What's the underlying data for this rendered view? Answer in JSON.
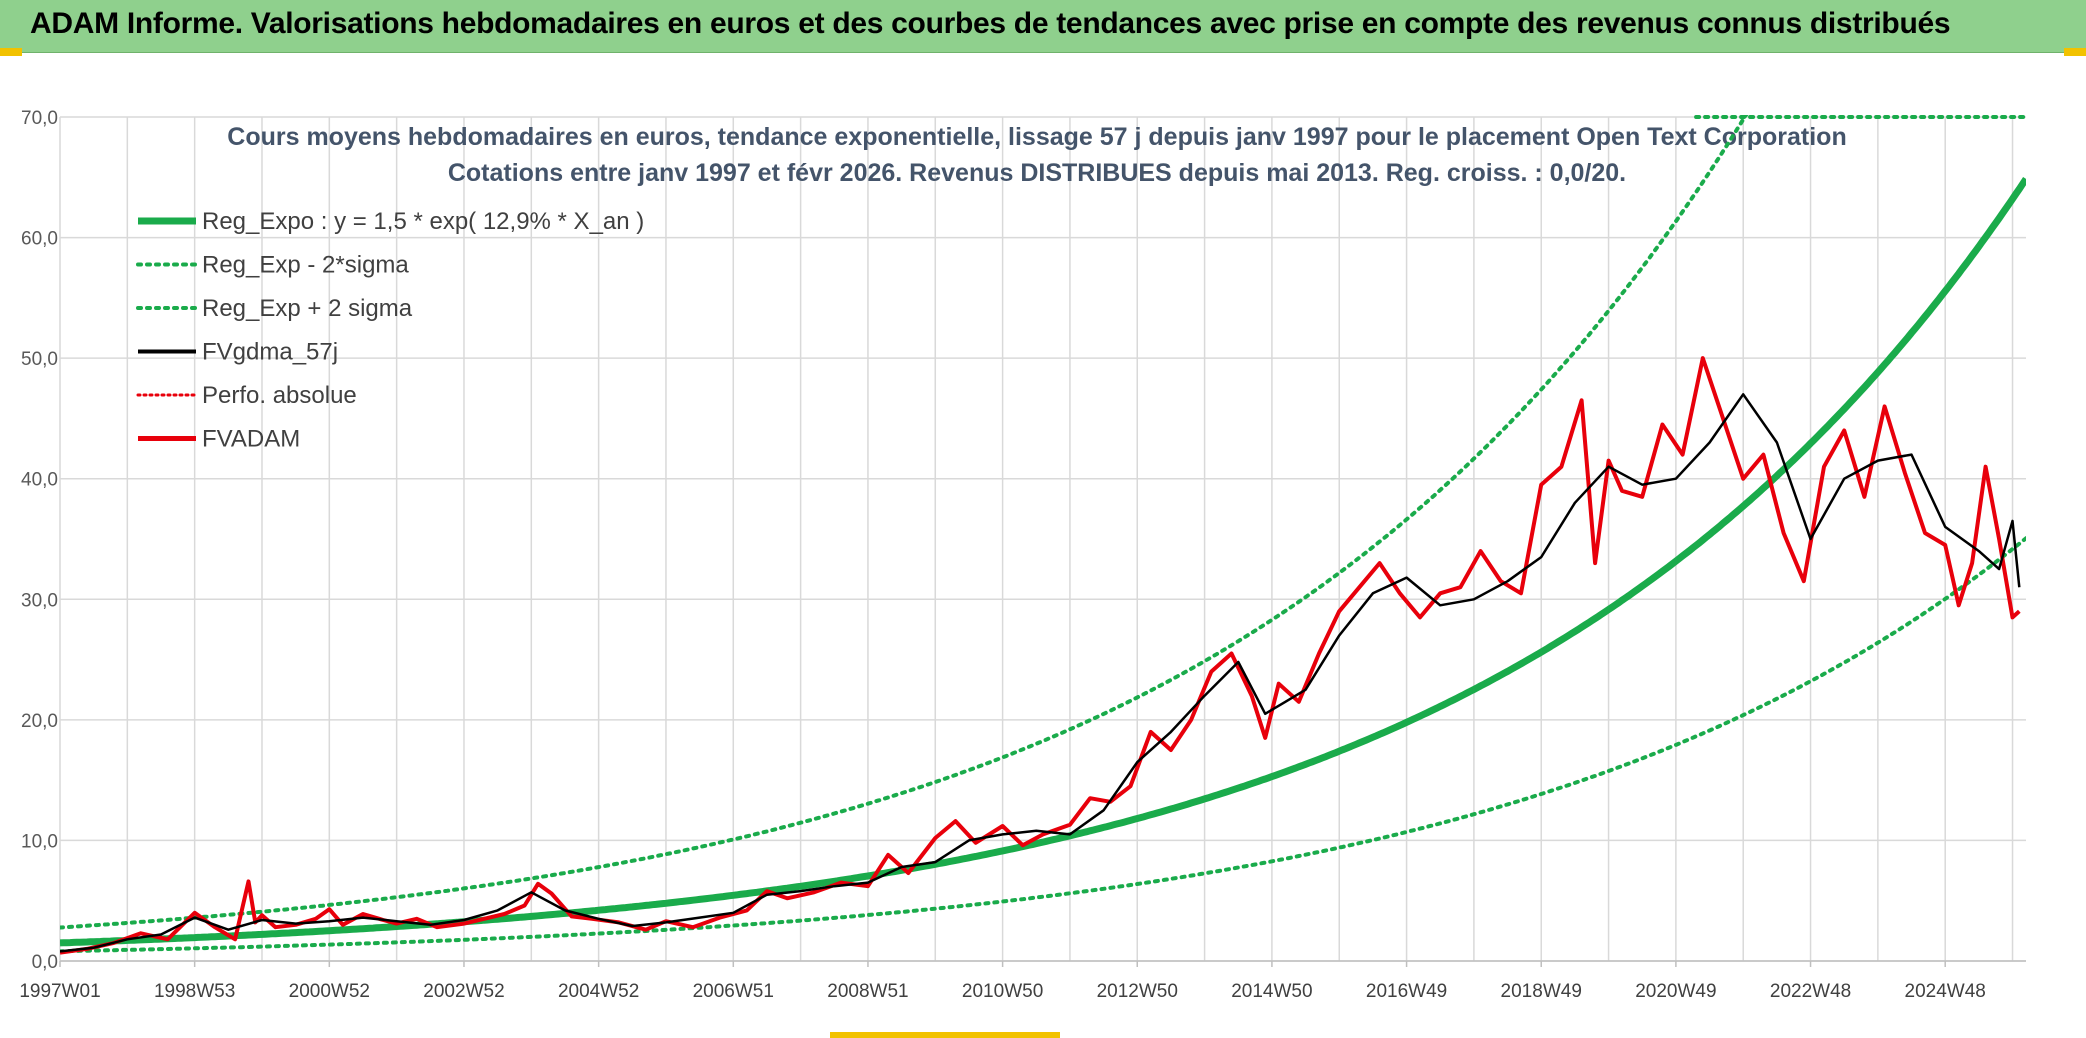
{
  "banner": {
    "title": "ADAM Informe. Valorisations hebdomadaires en euros et des courbes de tendances avec prise en compte des revenus connus distribués"
  },
  "colors": {
    "banner_bg": "#8fd08d",
    "accent_corner": "#f2c200",
    "trend": "#1aab4b",
    "smooth": "#000000",
    "price": "#e8000b"
  },
  "chart_data": {
    "type": "line",
    "title": "Cours moyens hebdomadaires en euros, tendance exponentielle, lissage 57 j depuis janv 1997 pour le placement Open Text Corporation",
    "subtitle": "Cotations entre janv 1997 et févr 2026. Revenus DISTRIBUES depuis mai 2013. Reg. croiss. : 0,0/20.",
    "xlabel": "",
    "ylabel": "",
    "ylim": [
      0,
      70
    ],
    "yticks": [
      "0,0",
      "10,0",
      "20,0",
      "30,0",
      "40,0",
      "50,0",
      "60,0",
      "70,0"
    ],
    "xlim": [
      1997.0,
      2026.2
    ],
    "xtick_labels": [
      "1997W01",
      "1998W53",
      "2000W52",
      "2002W52",
      "2004W52",
      "2006W51",
      "2008W51",
      "2010W50",
      "2012W50",
      "2014W50",
      "2016W49",
      "2018W49",
      "2020W49",
      "2022W48",
      "2024W48"
    ],
    "grid": true,
    "legend_position": "top-left",
    "trend_model": {
      "a": 1.5,
      "b": 0.129,
      "band_factor": 1.85
    },
    "series": [
      {
        "name": "Reg_Expo : y = 1,5 * exp( 12,9% *  X_an )",
        "style": "thick-solid",
        "color": "#1aab4b"
      },
      {
        "name": "Reg_Exp - 2*sigma",
        "style": "dotted",
        "color": "#1aab4b"
      },
      {
        "name": "Reg_Exp + 2 sigma",
        "style": "dotted",
        "color": "#1aab4b"
      },
      {
        "name": "FVgdma_57j",
        "style": "solid",
        "color": "#000000",
        "x": [
          1997.0,
          1997.5,
          1998.0,
          1998.5,
          1999.0,
          1999.5,
          2000.0,
          2000.5,
          2001.0,
          2001.5,
          2002.0,
          2002.5,
          2003.0,
          2003.5,
          2004.0,
          2004.5,
          2005.0,
          2005.5,
          2006.0,
          2006.5,
          2007.0,
          2007.5,
          2008.0,
          2008.5,
          2009.0,
          2009.5,
          2010.0,
          2010.5,
          2011.0,
          2011.5,
          2012.0,
          2012.5,
          2013.0,
          2013.5,
          2014.0,
          2014.5,
          2014.9,
          2015.2,
          2015.5,
          2016.0,
          2016.5,
          2017.0,
          2017.5,
          2018.0,
          2018.5,
          2019.0,
          2019.5,
          2020.0,
          2020.5,
          2021.0,
          2021.5,
          2022.0,
          2022.5,
          2023.0,
          2023.5,
          2024.0,
          2024.5,
          2025.0,
          2025.5,
          2025.8,
          2026.0,
          2026.1
        ],
        "y": [
          0.8,
          1.1,
          1.8,
          2.2,
          3.6,
          2.6,
          3.4,
          3.1,
          3.3,
          3.6,
          3.3,
          3.0,
          3.4,
          4.2,
          5.7,
          4.2,
          3.5,
          2.9,
          3.2,
          3.6,
          4.0,
          5.5,
          5.8,
          6.2,
          6.5,
          7.8,
          8.2,
          10.0,
          10.5,
          10.8,
          10.5,
          12.5,
          16.5,
          19.0,
          22.0,
          24.8,
          20.5,
          21.5,
          22.5,
          27.0,
          30.5,
          31.8,
          29.5,
          30.0,
          31.5,
          33.5,
          38.0,
          41.0,
          39.5,
          40.0,
          43.0,
          47.0,
          43.0,
          35.0,
          40.0,
          41.5,
          42.0,
          36.0,
          34.0,
          32.5,
          36.5,
          31.0
        ]
      },
      {
        "name": "Perfo. absolue",
        "style": "dotted",
        "color": "#e8000b"
      },
      {
        "name": "FVADAM",
        "style": "thick-solid",
        "color": "#e8000b",
        "x": [
          1997.0,
          1997.4,
          1997.8,
          1998.2,
          1998.6,
          1999.0,
          1999.3,
          1999.6,
          1999.8,
          1999.9,
          2000.0,
          2000.2,
          2000.5,
          2000.8,
          2001.0,
          2001.2,
          2001.5,
          2001.8,
          2002.0,
          2002.3,
          2002.6,
          2003.0,
          2003.3,
          2003.6,
          2003.9,
          2004.1,
          2004.3,
          2004.6,
          2004.9,
          2005.3,
          2005.7,
          2006.0,
          2006.4,
          2006.8,
          2007.2,
          2007.5,
          2007.8,
          2008.2,
          2008.6,
          2009.0,
          2009.3,
          2009.6,
          2010.0,
          2010.3,
          2010.6,
          2011.0,
          2011.3,
          2011.6,
          2012.0,
          2012.3,
          2012.6,
          2012.9,
          2013.2,
          2013.5,
          2013.8,
          2014.1,
          2014.4,
          2014.7,
          2014.9,
          2015.1,
          2015.4,
          2015.7,
          2016.0,
          2016.3,
          2016.6,
          2016.9,
          2017.2,
          2017.5,
          2017.8,
          2018.1,
          2018.4,
          2018.7,
          2019.0,
          2019.3,
          2019.6,
          2019.8,
          2020.0,
          2020.2,
          2020.5,
          2020.8,
          2021.1,
          2021.4,
          2021.7,
          2022.0,
          2022.3,
          2022.6,
          2022.9,
          2023.2,
          2023.5,
          2023.8,
          2024.1,
          2024.4,
          2024.7,
          2025.0,
          2025.2,
          2025.4,
          2025.6,
          2025.8,
          2026.0,
          2026.1
        ],
        "y": [
          0.7,
          1.0,
          1.5,
          2.3,
          1.8,
          4.0,
          2.8,
          1.8,
          6.6,
          3.2,
          3.8,
          2.8,
          3.0,
          3.5,
          4.3,
          3.0,
          3.9,
          3.4,
          3.1,
          3.5,
          2.8,
          3.1,
          3.5,
          3.9,
          4.6,
          6.4,
          5.6,
          3.7,
          3.5,
          3.2,
          2.6,
          3.3,
          2.8,
          3.6,
          4.2,
          5.8,
          5.2,
          5.7,
          6.5,
          6.2,
          8.8,
          7.3,
          10.2,
          11.6,
          9.8,
          11.2,
          9.6,
          10.5,
          11.3,
          13.5,
          13.2,
          14.5,
          19.0,
          17.5,
          20.0,
          24.0,
          25.5,
          22.0,
          18.5,
          23.0,
          21.5,
          25.5,
          29.0,
          31.0,
          33.0,
          30.5,
          28.5,
          30.5,
          31.0,
          34.0,
          31.5,
          30.5,
          39.5,
          41.0,
          46.5,
          33.0,
          41.5,
          39.0,
          38.5,
          44.5,
          42.0,
          50.0,
          45.0,
          40.0,
          42.0,
          35.5,
          31.5,
          41.0,
          44.0,
          38.5,
          46.0,
          40.5,
          35.5,
          34.5,
          29.5,
          33.0,
          41.0,
          35.0,
          28.5,
          29.0
        ]
      }
    ]
  }
}
